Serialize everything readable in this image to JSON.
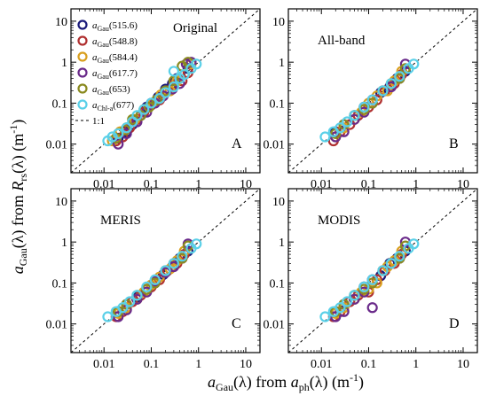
{
  "chart_data": [
    {
      "type": "scatter",
      "panel": "A",
      "label": "Original",
      "xlim": [
        0.002,
        20
      ],
      "ylim": [
        0.002,
        20
      ],
      "log": true,
      "series": [
        {
          "name_main": "a",
          "name_sub": "Gau",
          "name_suffix": "(515.6)",
          "color": "#1a1a7a",
          "x": [
            0.02,
            0.03,
            0.04,
            0.06,
            0.08,
            0.1,
            0.14,
            0.2,
            0.28,
            0.35,
            0.5,
            0.6
          ],
          "y": [
            0.014,
            0.02,
            0.03,
            0.05,
            0.08,
            0.1,
            0.14,
            0.22,
            0.3,
            0.4,
            0.5,
            0.7
          ]
        },
        {
          "name_main": "a",
          "name_sub": "Gau",
          "name_suffix": "(548.8)",
          "color": "#b03030",
          "x": [
            0.018,
            0.025,
            0.035,
            0.05,
            0.07,
            0.1,
            0.15,
            0.22,
            0.3,
            0.45,
            0.6
          ],
          "y": [
            0.012,
            0.015,
            0.025,
            0.04,
            0.06,
            0.09,
            0.12,
            0.2,
            0.28,
            0.35,
            0.55
          ]
        },
        {
          "name_main": "a",
          "name_sub": "Gau",
          "name_suffix": "(584.4)",
          "color": "#d9a020",
          "x": [
            0.015,
            0.022,
            0.03,
            0.045,
            0.07,
            0.11,
            0.16,
            0.25,
            0.35,
            0.5,
            0.7
          ],
          "y": [
            0.012,
            0.02,
            0.025,
            0.04,
            0.07,
            0.1,
            0.16,
            0.2,
            0.35,
            0.5,
            0.9
          ]
        },
        {
          "name_main": "a",
          "name_sub": "Gau",
          "name_suffix": "(617.7)",
          "color": "#6a2a8a",
          "x": [
            0.02,
            0.03,
            0.05,
            0.08,
            0.12,
            0.18,
            0.28,
            0.4,
            0.55,
            0.7
          ],
          "y": [
            0.01,
            0.018,
            0.035,
            0.06,
            0.1,
            0.15,
            0.22,
            0.3,
            0.9,
            1.0
          ]
        },
        {
          "name_main": "a",
          "name_sub": "Gau",
          "name_suffix": "(653)",
          "color": "#8a8a20",
          "x": [
            0.018,
            0.028,
            0.04,
            0.06,
            0.09,
            0.13,
            0.2,
            0.3,
            0.45,
            0.6
          ],
          "y": [
            0.014,
            0.022,
            0.04,
            0.05,
            0.08,
            0.12,
            0.2,
            0.35,
            0.8,
            1.0
          ]
        },
        {
          "name_main": "a",
          "name_sub": "Chl-a",
          "name_suffix": "(677)",
          "color": "#5ad0e8",
          "x": [
            0.012,
            0.015,
            0.02,
            0.03,
            0.04,
            0.05,
            0.07,
            0.1,
            0.15,
            0.2,
            0.3,
            0.4,
            0.5,
            0.7,
            0.9,
            0.3
          ],
          "y": [
            0.012,
            0.015,
            0.018,
            0.025,
            0.035,
            0.05,
            0.07,
            0.1,
            0.13,
            0.18,
            0.25,
            0.4,
            0.5,
            0.7,
            0.9,
            0.6
          ]
        }
      ],
      "legend_extra": "1:1",
      "letter": "A"
    },
    {
      "type": "scatter",
      "panel": "B",
      "label": "All-band",
      "xlim": [
        0.002,
        20
      ],
      "ylim": [
        0.002,
        20
      ],
      "log": true,
      "series": [
        {
          "name_suffix": "(515.6)",
          "color": "#1a1a7a",
          "x": [
            0.02,
            0.03,
            0.05,
            0.08,
            0.12,
            0.18,
            0.28,
            0.4,
            0.6
          ],
          "y": [
            0.02,
            0.03,
            0.05,
            0.08,
            0.1,
            0.18,
            0.25,
            0.4,
            0.6
          ]
        },
        {
          "name_suffix": "(548.8)",
          "color": "#b03030",
          "x": [
            0.018,
            0.025,
            0.04,
            0.06,
            0.1,
            0.15,
            0.22,
            0.35,
            0.5
          ],
          "y": [
            0.012,
            0.02,
            0.03,
            0.05,
            0.08,
            0.12,
            0.2,
            0.3,
            0.5
          ]
        },
        {
          "name_suffix": "(584.4)",
          "color": "#d9a020",
          "x": [
            0.02,
            0.03,
            0.05,
            0.07,
            0.1,
            0.15,
            0.25,
            0.35,
            0.5
          ],
          "y": [
            0.015,
            0.025,
            0.04,
            0.06,
            0.1,
            0.15,
            0.2,
            0.35,
            0.6
          ]
        },
        {
          "name_suffix": "(617.7)",
          "color": "#6a2a8a",
          "x": [
            0.02,
            0.03,
            0.05,
            0.08,
            0.12,
            0.2,
            0.3,
            0.45,
            0.6
          ],
          "y": [
            0.015,
            0.02,
            0.04,
            0.06,
            0.12,
            0.2,
            0.25,
            0.4,
            0.9
          ]
        },
        {
          "name_suffix": "(653)",
          "color": "#8a8a20",
          "x": [
            0.02,
            0.03,
            0.05,
            0.08,
            0.12,
            0.2,
            0.3,
            0.45,
            0.6
          ],
          "y": [
            0.018,
            0.03,
            0.05,
            0.07,
            0.1,
            0.2,
            0.3,
            0.4,
            0.7
          ]
        },
        {
          "name_suffix": "(677)",
          "color": "#5ad0e8",
          "x": [
            0.012,
            0.018,
            0.025,
            0.035,
            0.05,
            0.08,
            0.12,
            0.2,
            0.3,
            0.45,
            0.7,
            0.9
          ],
          "y": [
            0.015,
            0.02,
            0.025,
            0.035,
            0.05,
            0.08,
            0.12,
            0.2,
            0.3,
            0.45,
            0.7,
            0.9
          ]
        }
      ],
      "letter": "B"
    },
    {
      "type": "scatter",
      "panel": "C",
      "label": "MERIS",
      "xlim": [
        0.002,
        20
      ],
      "ylim": [
        0.002,
        20
      ],
      "log": true,
      "series": [
        {
          "name_suffix": "(515.6)",
          "color": "#1a1a7a",
          "x": [
            0.02,
            0.03,
            0.05,
            0.08,
            0.12,
            0.18,
            0.28,
            0.4,
            0.6
          ],
          "y": [
            0.02,
            0.03,
            0.045,
            0.07,
            0.1,
            0.16,
            0.25,
            0.4,
            0.6
          ]
        },
        {
          "name_suffix": "(548.8)",
          "color": "#b03030",
          "x": [
            0.018,
            0.025,
            0.04,
            0.06,
            0.1,
            0.15,
            0.22,
            0.35,
            0.5
          ],
          "y": [
            0.015,
            0.02,
            0.035,
            0.05,
            0.08,
            0.12,
            0.2,
            0.3,
            0.5
          ]
        },
        {
          "name_suffix": "(584.4)",
          "color": "#d9a020",
          "x": [
            0.02,
            0.03,
            0.05,
            0.07,
            0.1,
            0.15,
            0.25,
            0.35,
            0.5
          ],
          "y": [
            0.018,
            0.025,
            0.04,
            0.06,
            0.09,
            0.14,
            0.22,
            0.35,
            0.6
          ]
        },
        {
          "name_suffix": "(617.7)",
          "color": "#6a2a8a",
          "x": [
            0.02,
            0.03,
            0.05,
            0.08,
            0.12,
            0.2,
            0.3,
            0.45,
            0.6
          ],
          "y": [
            0.015,
            0.022,
            0.04,
            0.06,
            0.11,
            0.18,
            0.25,
            0.4,
            0.9
          ]
        },
        {
          "name_suffix": "(653)",
          "color": "#8a8a20",
          "x": [
            0.02,
            0.03,
            0.05,
            0.08,
            0.12,
            0.2,
            0.3,
            0.45,
            0.6
          ],
          "y": [
            0.02,
            0.03,
            0.05,
            0.07,
            0.1,
            0.2,
            0.3,
            0.4,
            0.8
          ]
        },
        {
          "name_suffix": "(677)",
          "color": "#5ad0e8",
          "x": [
            0.012,
            0.018,
            0.025,
            0.035,
            0.05,
            0.08,
            0.12,
            0.2,
            0.3,
            0.45,
            0.7,
            0.9
          ],
          "y": [
            0.015,
            0.02,
            0.025,
            0.035,
            0.05,
            0.08,
            0.12,
            0.2,
            0.3,
            0.45,
            0.7,
            0.9
          ]
        }
      ],
      "letter": "C"
    },
    {
      "type": "scatter",
      "panel": "D",
      "label": "MODIS",
      "xlim": [
        0.002,
        20
      ],
      "ylim": [
        0.002,
        20
      ],
      "log": true,
      "series": [
        {
          "name_suffix": "(515.6)",
          "color": "#1a1a7a",
          "x": [
            0.02,
            0.03,
            0.05,
            0.08,
            0.12,
            0.18,
            0.28,
            0.4,
            0.6
          ],
          "y": [
            0.02,
            0.03,
            0.05,
            0.08,
            0.12,
            0.15,
            0.3,
            0.4,
            0.6
          ]
        },
        {
          "name_suffix": "(548.8)",
          "color": "#b03030",
          "x": [
            0.018,
            0.025,
            0.04,
            0.06,
            0.1,
            0.15,
            0.22,
            0.35,
            0.5
          ],
          "y": [
            0.015,
            0.02,
            0.035,
            0.05,
            0.06,
            0.12,
            0.2,
            0.3,
            0.5
          ]
        },
        {
          "name_suffix": "(584.4)",
          "color": "#d9a020",
          "x": [
            0.02,
            0.03,
            0.05,
            0.07,
            0.1,
            0.15,
            0.25,
            0.35,
            0.5
          ],
          "y": [
            0.018,
            0.025,
            0.04,
            0.06,
            0.07,
            0.1,
            0.25,
            0.35,
            0.6
          ]
        },
        {
          "name_suffix": "(617.7)",
          "color": "#6a2a8a",
          "x": [
            0.02,
            0.03,
            0.05,
            0.08,
            0.12,
            0.2,
            0.3,
            0.45,
            0.6
          ],
          "y": [
            0.015,
            0.02,
            0.04,
            0.06,
            0.025,
            0.2,
            0.3,
            0.4,
            1.0
          ]
        },
        {
          "name_suffix": "(653)",
          "color": "#8a8a20",
          "x": [
            0.02,
            0.03,
            0.05,
            0.08,
            0.12,
            0.2,
            0.3,
            0.45,
            0.6
          ],
          "y": [
            0.02,
            0.03,
            0.05,
            0.07,
            0.1,
            0.2,
            0.3,
            0.4,
            0.8
          ]
        },
        {
          "name_suffix": "(677)",
          "color": "#5ad0e8",
          "x": [
            0.012,
            0.018,
            0.025,
            0.035,
            0.05,
            0.08,
            0.12,
            0.2,
            0.3,
            0.45,
            0.7,
            0.9
          ],
          "y": [
            0.015,
            0.02,
            0.025,
            0.035,
            0.05,
            0.08,
            0.12,
            0.2,
            0.3,
            0.45,
            0.7,
            0.9
          ]
        }
      ],
      "letter": "D"
    }
  ],
  "tick_labels": [
    "0.01",
    "0.1",
    "1",
    "10"
  ],
  "y_axis_title": {
    "a": "a",
    "sub1": "Gau",
    "mid": "(λ) from ",
    "R": "R",
    "sub2": "rs",
    "end": "(λ)  (m",
    "sup": "-1",
    "close": ")"
  },
  "x_axis_title": {
    "a": "a",
    "sub1": "Gau",
    "mid": "(λ) from ",
    "a2": "a",
    "sub2": "ph",
    "end": "(λ) (m",
    "sup": "-1",
    "close": ")"
  }
}
